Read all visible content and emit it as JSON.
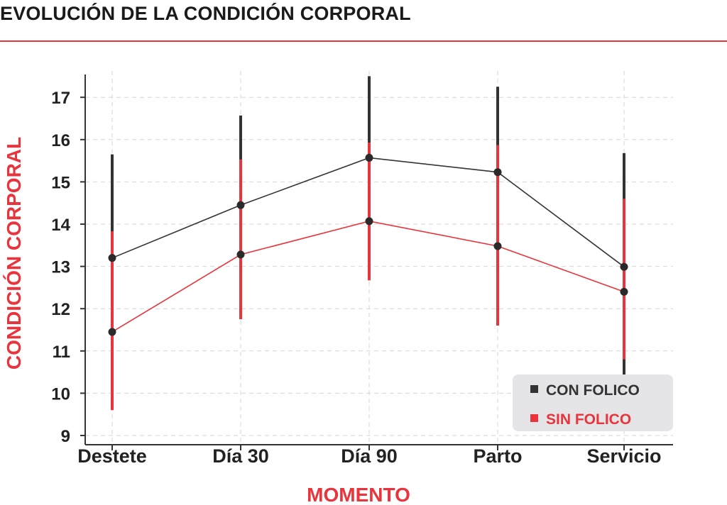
{
  "title": "EVOLUCIÓN DE LA CONDICIÓN CORPORAL",
  "colors": {
    "accent": "#e8343c",
    "dark": "#333333",
    "legend_bg": "#e5e5e7"
  },
  "chart_data": {
    "type": "line",
    "title": "EVOLUCIÓN DE LA CONDICIÓN CORPORAL",
    "xlabel": "MOMENTO",
    "ylabel": "CONDICIÓN CORPORAL",
    "categories": [
      "Destete",
      "Día 30",
      "Día 90",
      "Parto",
      "Servicio"
    ],
    "ylim": [
      9,
      17.5
    ],
    "yticks": [
      9,
      10,
      11,
      12,
      13,
      14,
      15,
      16,
      17
    ],
    "grid": true,
    "legend_position": "bottom-right",
    "error_bars": true,
    "series": [
      {
        "name": "CON FOLICO",
        "color": "#333333",
        "values": [
          13.2,
          14.45,
          15.57,
          15.23,
          12.99
        ],
        "lower": [
          10.75,
          12.3,
          13.6,
          13.2,
          10.3
        ],
        "upper": [
          15.65,
          16.57,
          17.5,
          17.25,
          15.68
        ]
      },
      {
        "name": "SIN FOLICO",
        "color": "#e8343c",
        "values": [
          11.45,
          13.28,
          14.07,
          13.48,
          12.4
        ],
        "lower": [
          9.6,
          11.75,
          12.67,
          11.6,
          10.8
        ],
        "upper": [
          13.83,
          15.53,
          15.93,
          15.87,
          14.6
        ]
      }
    ]
  }
}
